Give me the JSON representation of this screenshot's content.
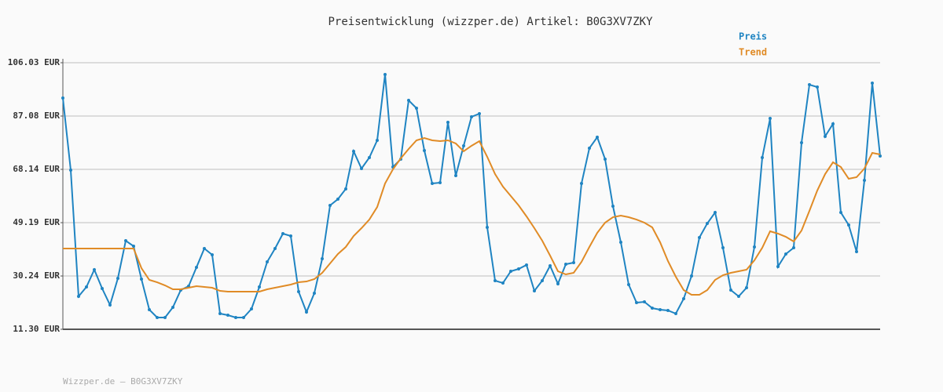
{
  "chart_data": {
    "type": "line",
    "title": "Preisentwicklung (wizzper.de) Artikel: B0G3XV7ZKY",
    "footer": "Wizzper.de – B0G3XV7ZKY",
    "categories": [
      null,
      null,
      null,
      null,
      null,
      null,
      null,
      null,
      null,
      null,
      null,
      null,
      null,
      null,
      null,
      null,
      null,
      null,
      null,
      null,
      null,
      null,
      null,
      null,
      null,
      null,
      null,
      null,
      null,
      null,
      null,
      null,
      null,
      null,
      null,
      null,
      null,
      null,
      null,
      null,
      null,
      null,
      null,
      null,
      null,
      null,
      null,
      null,
      null,
      null,
      null,
      null,
      null,
      null,
      null,
      null,
      null,
      null,
      null,
      null,
      null,
      null,
      null,
      null,
      null,
      null,
      null,
      null,
      null,
      null,
      null,
      null,
      null,
      null,
      null,
      null,
      null,
      null,
      null,
      null,
      null,
      null,
      null,
      null,
      null,
      null,
      null,
      null,
      null,
      null,
      null,
      null,
      null,
      null,
      null,
      null,
      null,
      null,
      null,
      null,
      null,
      null,
      null,
      null,
      null
    ],
    "series": [
      {
        "name": "Preis",
        "color": "#1f84c2",
        "markers": true,
        "values": [
          93.49,
          67.86,
          23.0,
          26.34,
          32.47,
          25.79,
          19.94,
          29.41,
          42.78,
          40.83,
          29.13,
          18.26,
          15.48,
          15.48,
          19.1,
          25.23,
          26.62,
          33.31,
          40.0,
          37.77,
          16.87,
          16.32,
          15.48,
          15.48,
          18.54,
          26.34,
          35.26,
          40.0,
          45.29,
          44.45,
          24.67,
          17.43,
          24.12,
          36.37,
          55.32,
          57.55,
          61.17,
          74.55,
          68.42,
          72.32,
          78.45,
          101.85,
          68.97,
          71.76,
          92.66,
          89.87,
          74.82,
          63.12,
          63.4,
          84.86,
          65.91,
          76.5,
          86.81,
          87.92,
          47.52,
          28.57,
          27.74,
          31.92,
          32.75,
          34.15,
          24.95,
          28.57,
          33.87,
          27.46,
          34.42,
          34.98,
          63.12,
          75.66,
          79.56,
          71.76,
          55.04,
          42.23,
          27.18,
          20.77,
          21.05,
          18.82,
          18.26,
          17.99,
          16.87,
          22.16,
          30.24,
          43.9,
          48.91,
          52.81,
          40.27,
          25.23,
          23.0,
          26.06,
          40.55,
          72.32,
          86.25,
          33.59,
          38.05,
          40.27,
          77.61,
          98.23,
          97.39,
          79.84,
          84.3,
          52.81,
          48.35,
          38.88,
          64.24,
          98.79,
          72.87
        ]
      },
      {
        "name": "Trend",
        "color": "#e08b26",
        "markers": false,
        "values": [
          40.0,
          40.0,
          40.0,
          40.0,
          40.0,
          40.0,
          40.0,
          40.0,
          40.0,
          40.0,
          33.03,
          28.85,
          28.01,
          26.9,
          25.51,
          25.51,
          26.06,
          26.62,
          26.34,
          26.06,
          24.95,
          24.67,
          24.67,
          24.67,
          24.67,
          24.67,
          25.51,
          26.06,
          26.62,
          27.18,
          28.01,
          28.29,
          29.13,
          31.36,
          34.7,
          38.05,
          40.55,
          44.45,
          47.24,
          50.3,
          54.76,
          63.12,
          68.14,
          72.04,
          75.38,
          78.45,
          79.28,
          78.45,
          78.17,
          78.45,
          77.33,
          74.55,
          76.5,
          78.17,
          72.59,
          66.46,
          62.01,
          58.66,
          55.32,
          51.42,
          47.24,
          42.78,
          37.49,
          31.92,
          30.8,
          31.36,
          35.26,
          40.55,
          45.57,
          49.19,
          51.14,
          51.7,
          51.14,
          50.3,
          49.19,
          47.52,
          42.23,
          35.54,
          29.97,
          25.23,
          23.56,
          23.56,
          25.23,
          28.85,
          30.52,
          31.36,
          31.92,
          32.47,
          35.82,
          40.27,
          46.13,
          45.29,
          44.17,
          42.5,
          46.4,
          53.37,
          60.61,
          66.46,
          70.64,
          68.97,
          64.79,
          65.35,
          68.42,
          73.99,
          73.43
        ]
      }
    ],
    "ylim": [
      11.3,
      106.03
    ],
    "yticks": [
      {
        "value": 11.3,
        "label": "11.30 EUR"
      },
      {
        "value": 30.24,
        "label": "30.24 EUR"
      },
      {
        "value": 49.19,
        "label": "49.19 EUR"
      },
      {
        "value": 68.14,
        "label": "68.14 EUR"
      },
      {
        "value": 87.08,
        "label": "87.08 EUR"
      },
      {
        "value": 106.03,
        "label": "106.03 EUR"
      }
    ],
    "grid": true,
    "legend": "top-right"
  }
}
